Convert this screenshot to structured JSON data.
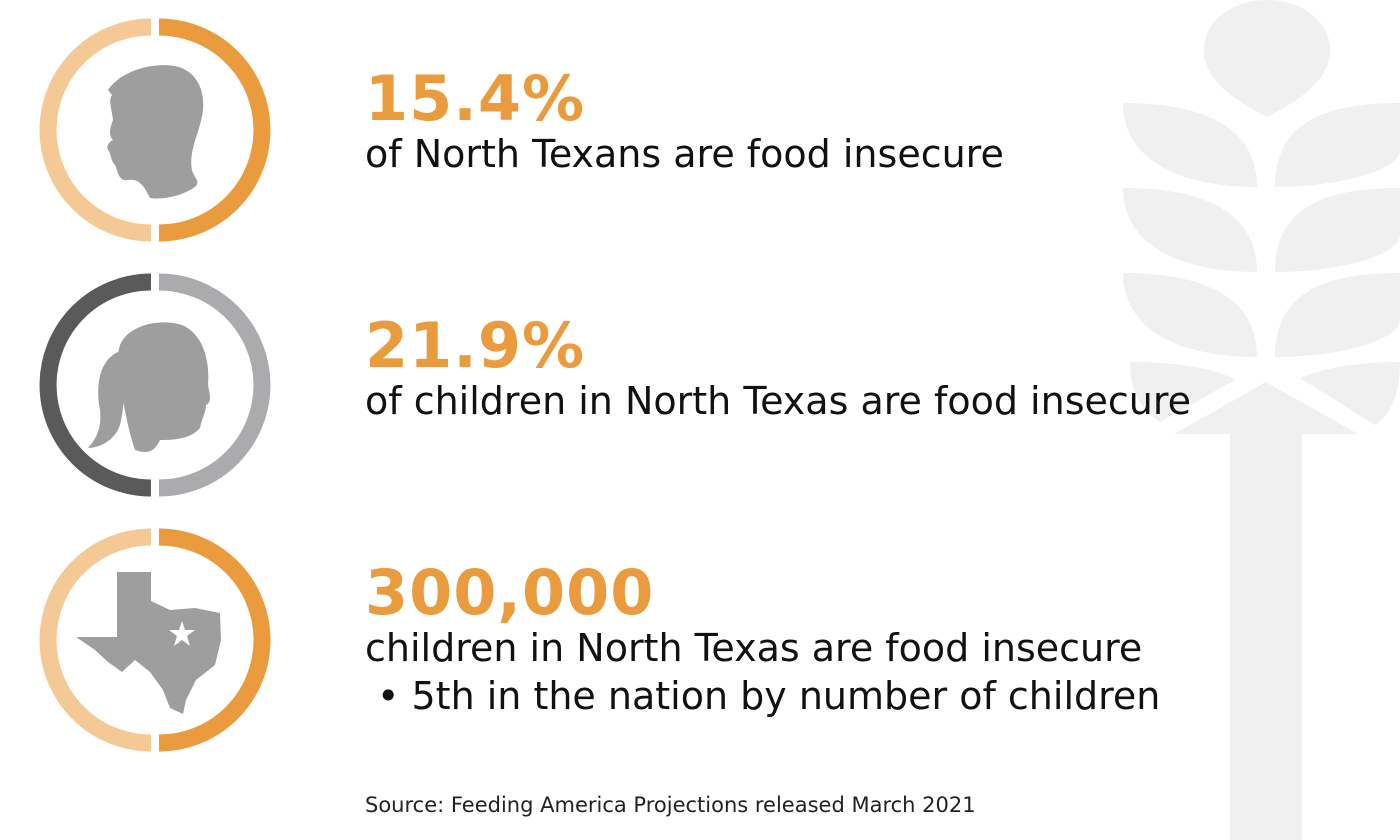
{
  "colors": {
    "accent": "#E99B3E",
    "accent_light": "#F5C995",
    "ring_dark": "#5A5A5A",
    "ring_gray": "#ABABAD",
    "silhouette": "#9E9E9F",
    "wheat": "#F0F0F1"
  },
  "stats": [
    {
      "icon": "adult-head-icon",
      "value": "15.4%",
      "text": "of North Texans are food insecure"
    },
    {
      "icon": "child-head-icon",
      "value": "21.9%",
      "text": "of children in North Texas are food insecure"
    },
    {
      "icon": "texas-map-icon",
      "value": "300,000",
      "text": "children in North Texas are food insecure",
      "bullet": "• 5th in the nation by number of children"
    }
  ],
  "source": "Source: Feeding America Projections released March 2021"
}
